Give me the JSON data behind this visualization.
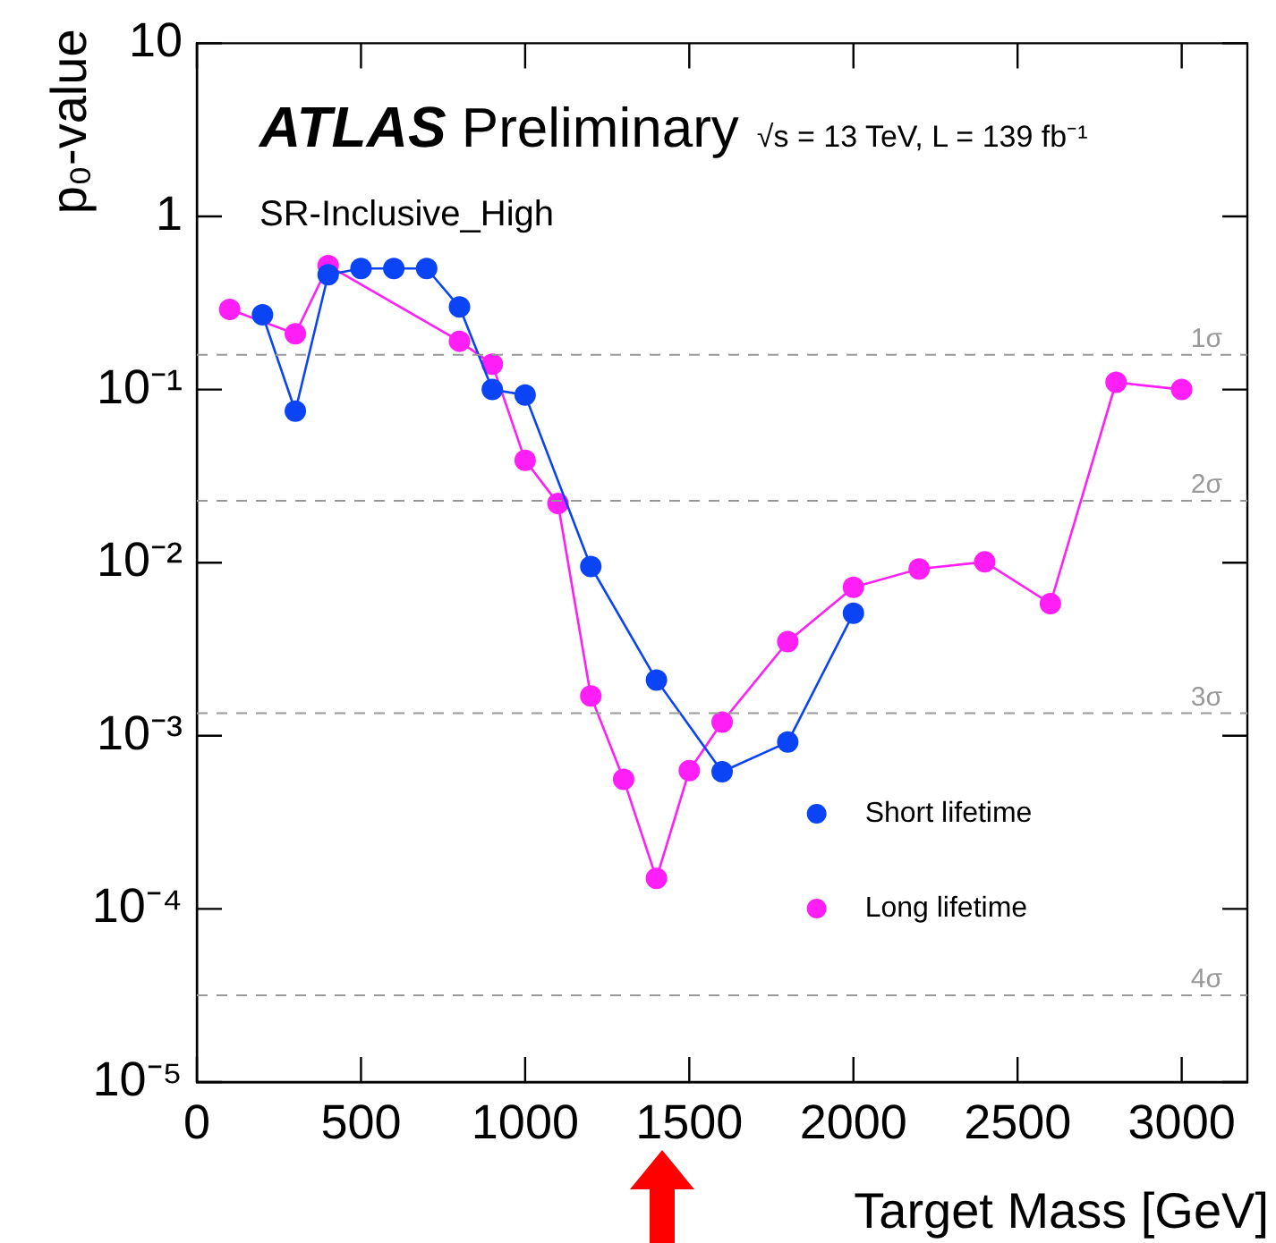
{
  "chart_data": {
    "type": "line",
    "xlabel": "Target Mass [GeV]",
    "ylabel": "p₀-value",
    "annotations": [
      "ATLAS Preliminary",
      "√s = 13 TeV, L = 139 fb⁻¹",
      "SR-Inclusive_High"
    ],
    "series": [
      {
        "name": "Short lifetime",
        "color": "#0a44f5",
        "x": [
          200,
          300,
          400,
          500,
          600,
          700,
          800,
          900,
          1000,
          1200,
          1400,
          1600,
          1800,
          2000
        ],
        "values": [
          0.27,
          0.075,
          0.46,
          0.5,
          0.5,
          0.5,
          0.3,
          0.1,
          0.093,
          0.0095,
          0.0021,
          0.00062,
          0.00092,
          0.0051
        ]
      },
      {
        "name": "Long lifetime",
        "color": "#ff1ef5",
        "x": [
          100,
          300,
          400,
          800,
          900,
          1000,
          1100,
          1200,
          1300,
          1400,
          1500,
          1600,
          1800,
          2000,
          2200,
          2400,
          2600,
          2800,
          3000
        ],
        "values": [
          0.29,
          0.21,
          0.52,
          0.19,
          0.14,
          0.039,
          0.022,
          0.0017,
          0.00056,
          0.00015,
          0.00063,
          0.0012,
          0.0035,
          0.0072,
          0.0092,
          0.0101,
          0.0058,
          0.11,
          0.1
        ]
      }
    ],
    "ref_lines": [
      {
        "axis": "y",
        "value": 0.1587,
        "label": "1σ",
        "color": "#999999",
        "line_style": "dashed"
      },
      {
        "axis": "y",
        "value": 0.02275,
        "label": "2σ",
        "color": "#999999",
        "line_style": "dashed"
      },
      {
        "axis": "y",
        "value": 0.00135,
        "label": "3σ",
        "color": "#999999",
        "line_style": "dashed"
      },
      {
        "axis": "y",
        "value": 3.17e-05,
        "label": "4σ",
        "color": "#999999",
        "line_style": "dashed"
      }
    ],
    "log": "y",
    "xlim": [
      0,
      3200
    ],
    "xticks": [
      0,
      500,
      1000,
      1500,
      2000,
      2500,
      3000
    ],
    "ylim": [
      1e-05,
      10
    ],
    "yticks": [
      {
        "value": 1e-05,
        "label": "10⁻⁵"
      },
      {
        "value": 0.0001,
        "label": "10⁻⁴"
      },
      {
        "value": 0.001,
        "label": "10⁻³"
      },
      {
        "value": 0.01,
        "label": "10⁻²"
      },
      {
        "value": 0.1,
        "label": "10⁻¹"
      },
      1,
      10
    ],
    "grid": false,
    "legend": "bottom right",
    "marker": "circle",
    "line_style": "solid"
  }
}
